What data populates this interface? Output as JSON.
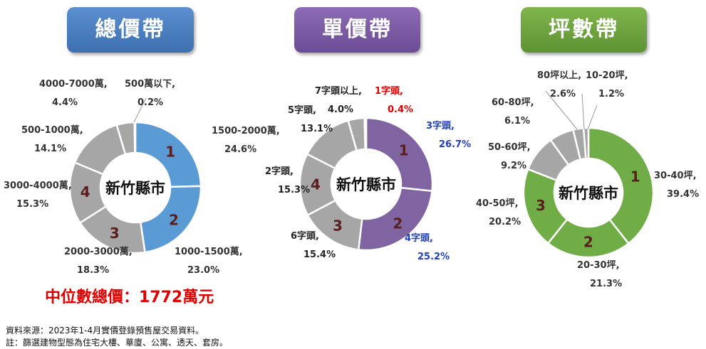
{
  "charts": [
    {
      "title": "總價帶",
      "center_label": "新竹縣市",
      "header_color": "#4a7fc1"
    },
    {
      "title": "單價帶",
      "center_label": "新竹縣市",
      "header_color": "#7b5aa6"
    },
    {
      "title": "坪數帶",
      "center_label": "新竹縣市",
      "header_color": "#6ea542"
    }
  ],
  "chart_data": [
    {
      "type": "pie",
      "title": "總價帶",
      "center_label": "新竹縣市",
      "slices": [
        {
          "label": "1500-2000萬,",
          "value": 24.6,
          "value_label": "24.6%",
          "rank": "1",
          "color": "#5b9bd5"
        },
        {
          "label": "1000-1500萬,",
          "value": 23.0,
          "value_label": "23.0%",
          "rank": "2",
          "color": "#5b9bd5"
        },
        {
          "label": "2000-3000萬,",
          "value": 18.3,
          "value_label": "18.3%",
          "rank": "3",
          "color": "#a6a6a6"
        },
        {
          "label": "3000-4000萬,",
          "value": 15.3,
          "value_label": "15.3%",
          "rank": "4",
          "color": "#a6a6a6"
        },
        {
          "label": "500-1000萬,",
          "value": 14.1,
          "value_label": "14.1%",
          "rank": "",
          "color": "#a6a6a6"
        },
        {
          "label": "4000-7000萬,",
          "value": 4.4,
          "value_label": "4.4%",
          "rank": "",
          "color": "#a6a6a6"
        },
        {
          "label": "500萬以下,",
          "value": 0.2,
          "value_label": "0.2%",
          "rank": "",
          "color": "#a6a6a6"
        }
      ]
    },
    {
      "type": "pie",
      "title": "單價帶",
      "center_label": "新竹縣市",
      "slices": [
        {
          "label": "3字頭,",
          "value": 26.7,
          "value_label": "26.7%",
          "rank": "1",
          "color": "#8064a2",
          "text_color": "#1f3fbf"
        },
        {
          "label": "4字頭,",
          "value": 25.2,
          "value_label": "25.2%",
          "rank": "2",
          "color": "#8064a2",
          "text_color": "#1f3fbf"
        },
        {
          "label": "6字頭,",
          "value": 15.4,
          "value_label": "15.4%",
          "rank": "3",
          "color": "#a6a6a6",
          "text_color": "#222222"
        },
        {
          "label": "2字頭,",
          "value": 15.3,
          "value_label": "15.3%",
          "rank": "4",
          "color": "#a6a6a6",
          "text_color": "#222222"
        },
        {
          "label": "5字頭,",
          "value": 13.1,
          "value_label": "13.1%",
          "rank": "",
          "color": "#a6a6a6",
          "text_color": "#222222"
        },
        {
          "label": "7字頭以上,",
          "value": 4.0,
          "value_label": "4.0%",
          "rank": "",
          "color": "#a6a6a6",
          "text_color": "#222222"
        },
        {
          "label": "1字頭,",
          "value": 0.4,
          "value_label": "0.4%",
          "rank": "",
          "color": "#a6a6a6",
          "text_color": "#e00000"
        }
      ]
    },
    {
      "type": "pie",
      "title": "坪數帶",
      "center_label": "新竹縣市",
      "slices": [
        {
          "label": "30-40坪,",
          "value": 39.4,
          "value_label": "39.4%",
          "rank": "1",
          "color": "#70ad47"
        },
        {
          "label": "20-30坪,",
          "value": 21.3,
          "value_label": "21.3%",
          "rank": "2",
          "color": "#70ad47"
        },
        {
          "label": "40-50坪,",
          "value": 20.2,
          "value_label": "20.2%",
          "rank": "3",
          "color": "#70ad47"
        },
        {
          "label": "50-60坪,",
          "value": 9.2,
          "value_label": "9.2%",
          "rank": "",
          "color": "#a6a6a6"
        },
        {
          "label": "60-80坪,",
          "value": 6.1,
          "value_label": "6.1%",
          "rank": "",
          "color": "#a6a6a6"
        },
        {
          "label": "80坪以上,",
          "value": 2.6,
          "value_label": "2.6%",
          "rank": "",
          "color": "#a6a6a6"
        },
        {
          "label": "10-20坪,",
          "value": 1.2,
          "value_label": "1.2%",
          "rank": "",
          "color": "#a6a6a6"
        }
      ]
    }
  ],
  "median": "中位數總價：1772萬元",
  "notes": [
    "資料來源：2023年1-4月實價登錄預售屋交易資料。",
    "註：篩選建物型態為住宅大樓、華廈、公寓、透天、套房。"
  ]
}
